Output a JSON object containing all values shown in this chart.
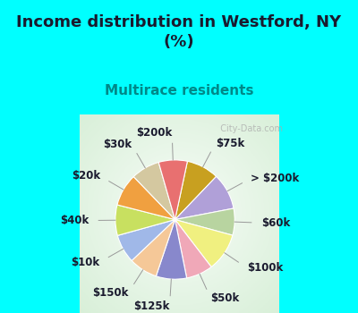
{
  "title": "Income distribution in Westford, NY\n(%)",
  "subtitle": "Multirace residents",
  "bg_cyan": "#00ffff",
  "bg_chart_center": "#f0f8ee",
  "watermark": "City-Data.com",
  "labels": [
    "$75k",
    "> $200k",
    "$60k",
    "$100k",
    "$50k",
    "$125k",
    "$150k",
    "$10k",
    "$40k",
    "$20k",
    "$30k",
    "$200k"
  ],
  "sizes": [
    8.5,
    9.5,
    7.0,
    10.0,
    7.0,
    8.0,
    7.5,
    7.5,
    8.0,
    8.5,
    7.5,
    7.5
  ],
  "colors": [
    "#c8a020",
    "#b0a0d8",
    "#b8d4a0",
    "#f0f080",
    "#f0a8b8",
    "#8888cc",
    "#f5c898",
    "#a0b8e8",
    "#c8e060",
    "#f0a040",
    "#d4c8a0",
    "#e87070"
  ],
  "title_fontsize": 13,
  "subtitle_fontsize": 11,
  "label_fontsize": 8.5,
  "startangle": 78,
  "title_color": "#1a1a2e",
  "subtitle_color": "#008888"
}
